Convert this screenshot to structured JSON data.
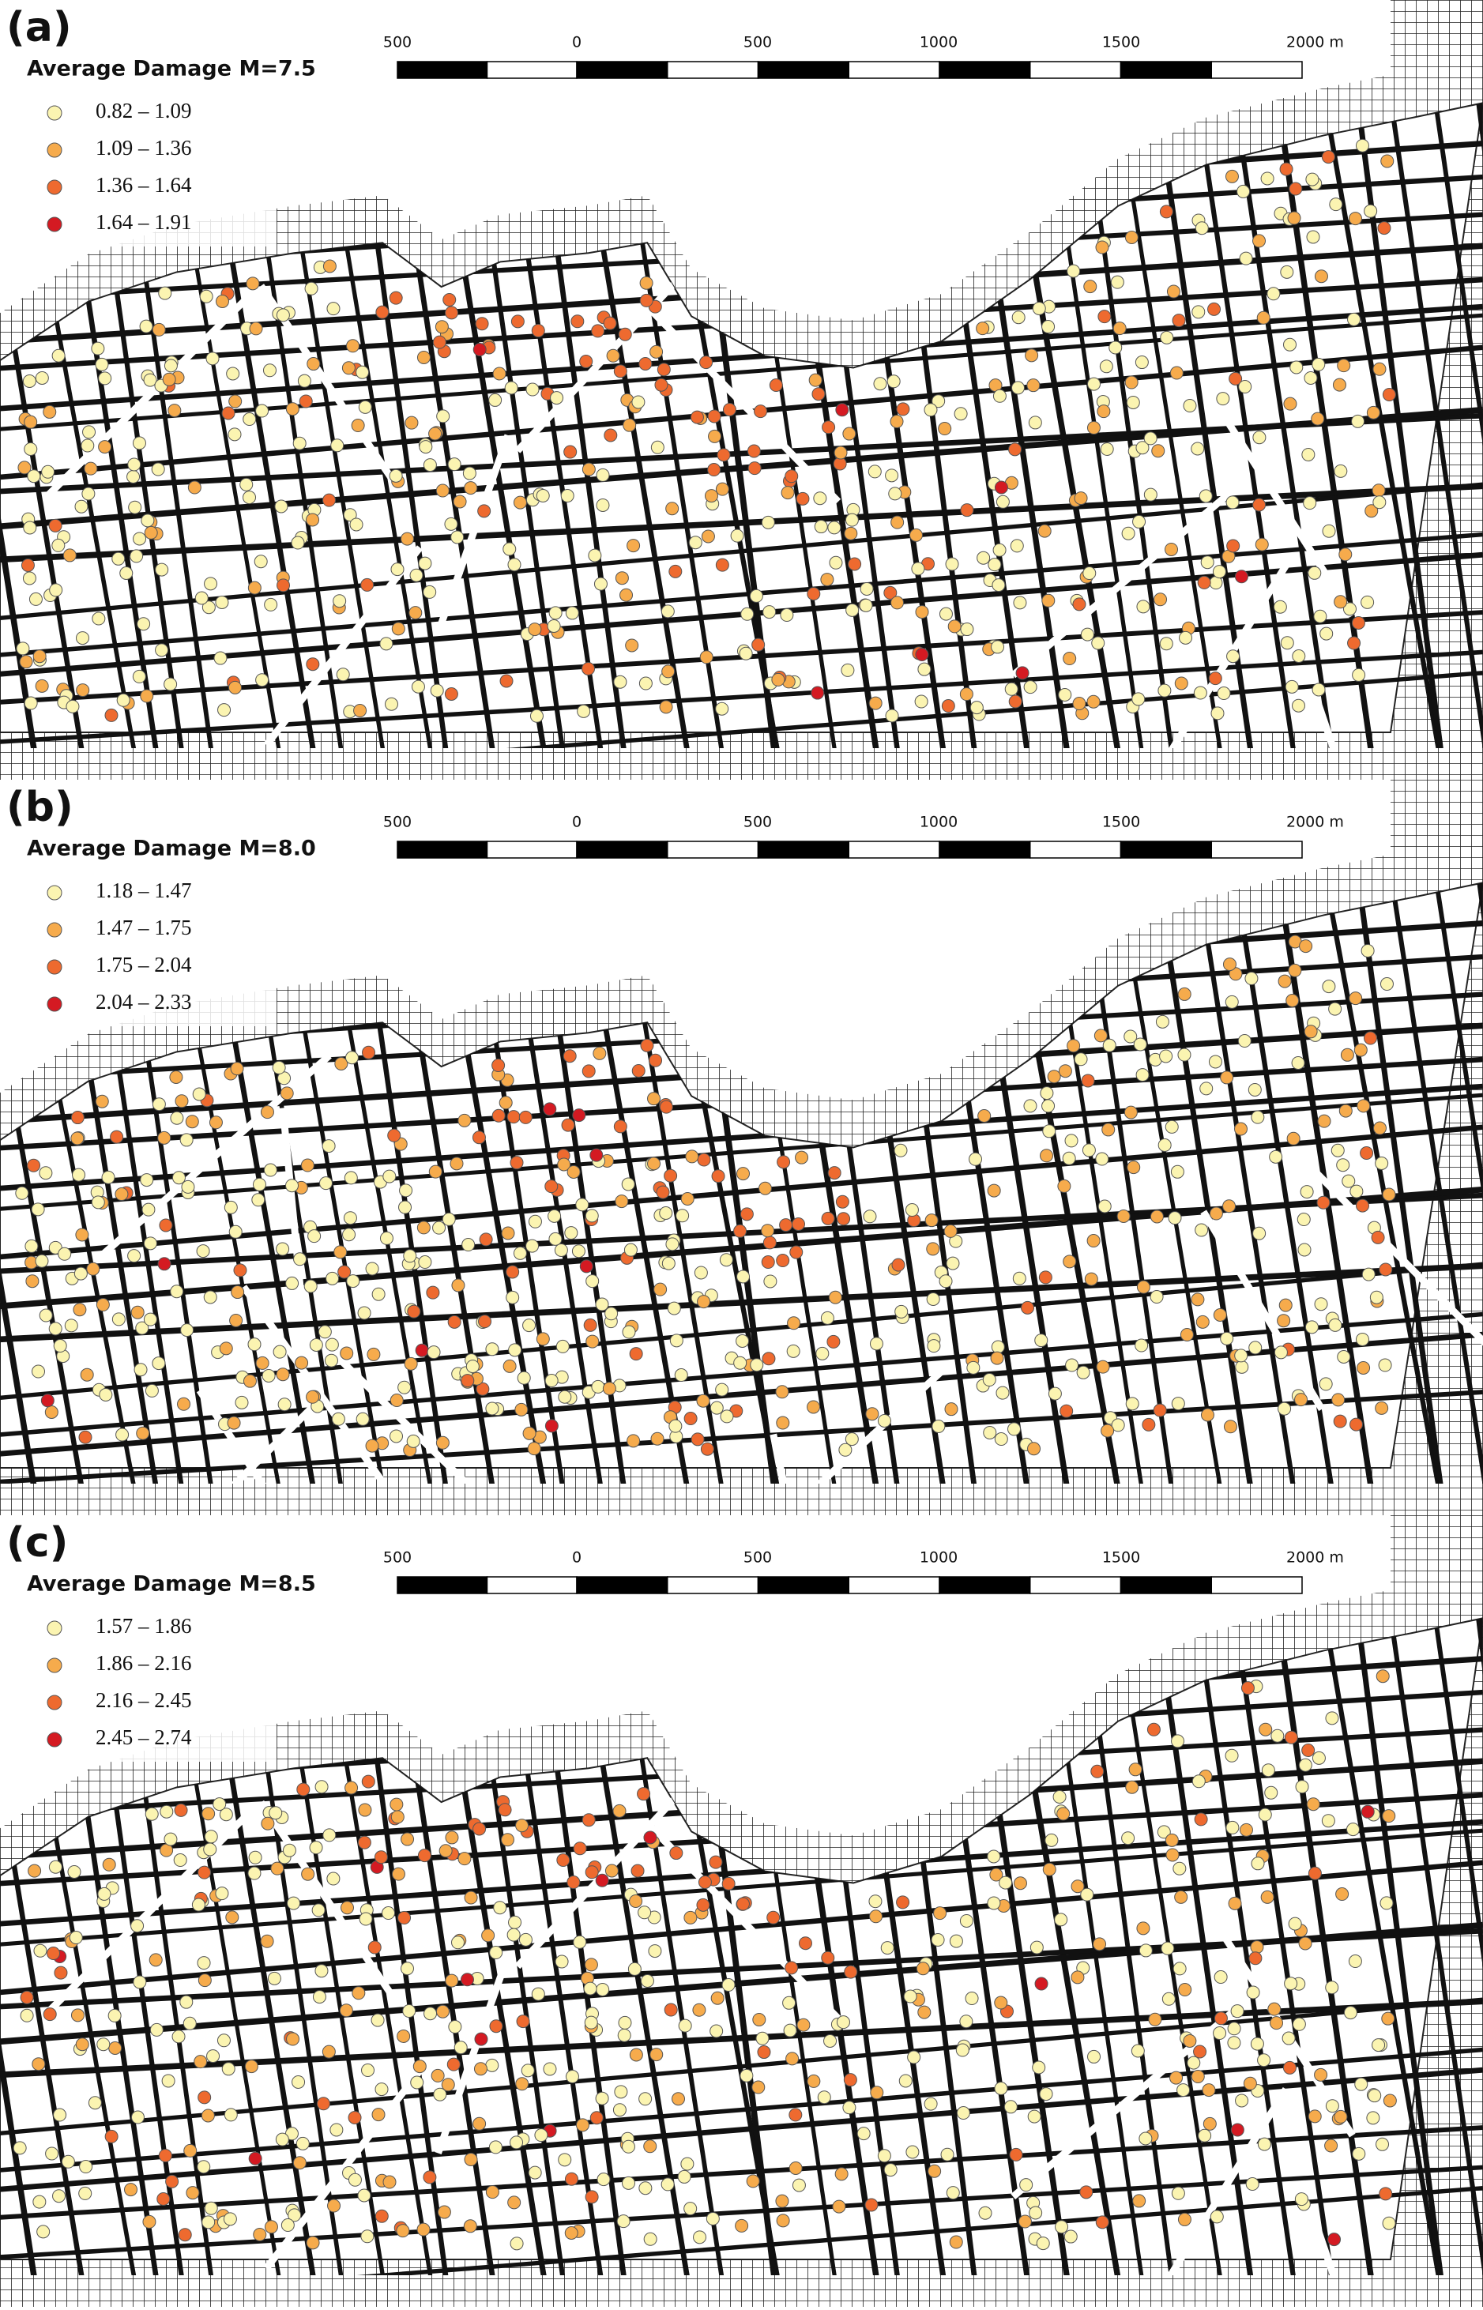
{
  "panels": [
    {
      "label": "(a)",
      "legend_title": "Average Damage M=7.5",
      "classes": [
        {
          "label": "0.82 – 1.09",
          "color": "#fbf4b1"
        },
        {
          "label": "1.09 – 1.36",
          "color": "#f6ab4c"
        },
        {
          "label": "1.36 – 1.64",
          "color": "#ee6a2f"
        },
        {
          "label": "1.64 – 1.91",
          "color": "#d41a22"
        }
      ],
      "scale_labels": [
        "500",
        "0",
        "500",
        "1000",
        "1500",
        "2000 m"
      ]
    },
    {
      "label": "(b)",
      "legend_title": "Average Damage M=8.0",
      "classes": [
        {
          "label": "1.18 – 1.47",
          "color": "#fbf4b1"
        },
        {
          "label": "1.47 – 1.75",
          "color": "#f6ab4c"
        },
        {
          "label": "1.75 – 2.04",
          "color": "#ee6a2f"
        },
        {
          "label": "2.04 – 2.33",
          "color": "#d41a22"
        }
      ],
      "scale_labels": [
        "500",
        "0",
        "500",
        "1000",
        "1500",
        "2000 m"
      ]
    },
    {
      "label": "(c)",
      "legend_title": "Average Damage M=8.5",
      "classes": [
        {
          "label": "1.57 – 1.86",
          "color": "#fbf4b1"
        },
        {
          "label": "1.86 – 2.16",
          "color": "#f6ab4c"
        },
        {
          "label": "2.16 – 2.45",
          "color": "#ee6a2f"
        },
        {
          "label": "2.45 – 2.74",
          "color": "#d41a22"
        }
      ],
      "scale_labels": [
        "500",
        "0",
        "500",
        "1000",
        "1500",
        "2000 m"
      ]
    }
  ]
}
